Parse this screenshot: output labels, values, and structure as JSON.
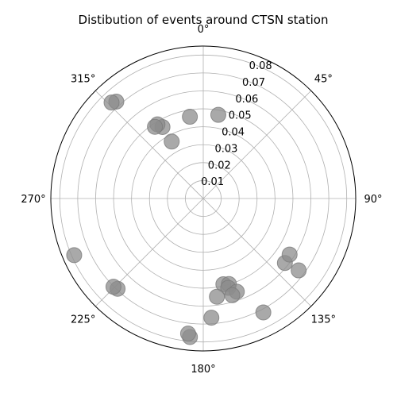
{
  "chart_data": {
    "type": "scatter",
    "projection": "polar",
    "title": "Distibution of events around CTSN station",
    "theta_zero": "N",
    "theta_direction": "clockwise",
    "r_max": 0.085,
    "r_ticks": [
      0.01,
      0.02,
      0.03,
      0.04,
      0.05,
      0.06,
      0.07,
      0.08
    ],
    "r_tick_labels": [
      "0.01",
      "0.02",
      "0.03",
      "0.04",
      "0.05",
      "0.06",
      "0.07",
      "0.08"
    ],
    "theta_ticks": [
      0,
      45,
      90,
      135,
      180,
      225,
      270,
      315
    ],
    "theta_tick_labels": [
      "0°",
      "45°",
      "90°",
      "135°",
      "180°",
      "225°",
      "270°",
      "315°"
    ],
    "grid": true,
    "marker_color": "#8c8c8c",
    "marker_alpha": 0.75,
    "points": [
      {
        "theta": 350.7,
        "r": 0.0462
      },
      {
        "theta": 10.2,
        "r": 0.0474
      },
      {
        "theta": 330.3,
        "r": 0.0459
      },
      {
        "theta": 328.3,
        "r": 0.0486
      },
      {
        "theta": 326.0,
        "r": 0.0482
      },
      {
        "theta": 331.0,
        "r": 0.0363
      },
      {
        "theta": 318.1,
        "r": 0.0726
      },
      {
        "theta": 316.3,
        "r": 0.074
      },
      {
        "theta": 128.3,
        "r": 0.058
      },
      {
        "theta": 123.0,
        "r": 0.0574
      },
      {
        "theta": 127.0,
        "r": 0.0666
      },
      {
        "theta": 152.2,
        "r": 0.0718
      },
      {
        "theta": 166.8,
        "r": 0.0491
      },
      {
        "theta": 163.3,
        "r": 0.0498
      },
      {
        "theta": 164.4,
        "r": 0.0517
      },
      {
        "theta": 172.1,
        "r": 0.0553
      },
      {
        "theta": 160.2,
        "r": 0.0552
      },
      {
        "theta": 163.3,
        "r": 0.0563
      },
      {
        "theta": 176.1,
        "r": 0.0666
      },
      {
        "theta": 185.5,
        "r": 0.0776
      },
      {
        "theta": 186.4,
        "r": 0.0758
      },
      {
        "theta": 223.5,
        "r": 0.0694
      },
      {
        "theta": 225.5,
        "r": 0.0702
      },
      {
        "theta": 246.3,
        "r": 0.0786
      }
    ]
  }
}
